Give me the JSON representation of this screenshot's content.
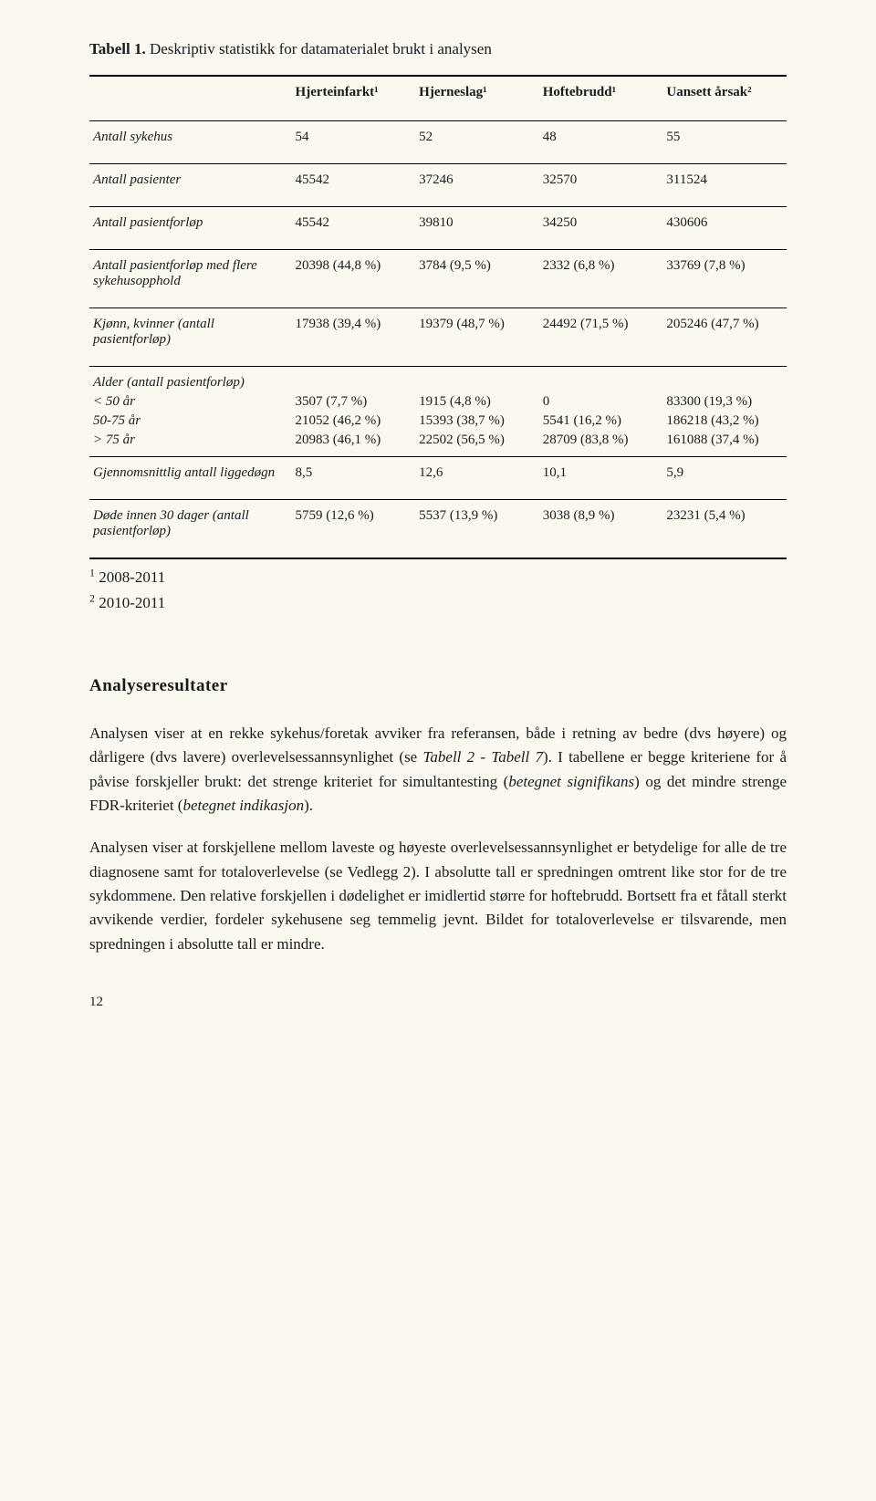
{
  "caption_bold": "Tabell 1.",
  "caption_rest": " Deskriptiv statistikk for datamaterialet brukt i analysen",
  "columns": [
    "Hjerteinfarkt¹",
    "Hjerneslag¹",
    "Hoftebrudd¹",
    "Uansett årsak²"
  ],
  "rows": {
    "antall_sykehus": {
      "label": "Antall sykehus",
      "v": [
        "54",
        "52",
        "48",
        "55"
      ]
    },
    "antall_pasienter": {
      "label": "Antall pasienter",
      "v": [
        "45542",
        "37246",
        "32570",
        "311524"
      ]
    },
    "antall_pasientforlop": {
      "label": "Antall pasientforløp",
      "v": [
        "45542",
        "39810",
        "34250",
        "430606"
      ]
    },
    "antall_pf_flere": {
      "label": "Antall pasientforløp med flere sykehusopphold",
      "v": [
        "20398 (44,8 %)",
        "3784 (9,5 %)",
        "2332 (6,8 %)",
        "33769 (7,8 %)"
      ]
    },
    "kjonn_kvinner": {
      "label": "Kjønn, kvinner (antall pasientforløp)",
      "v": [
        "17938 (39,4 %)",
        "19379 (48,7 %)",
        "24492 (71,5 %)",
        "205246 (47,7 %)"
      ]
    },
    "alder_head": "Alder (antall pasientforløp)",
    "alder_u50": {
      "label": "< 50 år",
      "v": [
        "3507 (7,7 %)",
        "1915 (4,8 %)",
        "0",
        "83300 (19,3 %)"
      ]
    },
    "alder_50_75": {
      "label": "50-75 år",
      "v": [
        "21052 (46,2 %)",
        "15393 (38,7 %)",
        "5541 (16,2 %)",
        "186218 (43,2 %)"
      ]
    },
    "alder_o75": {
      "label": "> 75 år",
      "v": [
        "20983 (46,1 %)",
        "22502 (56,5 %)",
        "28709 (83,8 %)",
        "161088 (37,4 %)"
      ]
    },
    "liggedogn": {
      "label": "Gjennomsnittlig antall liggedøgn",
      "v": [
        "8,5",
        "12,6",
        "10,1",
        "5,9"
      ]
    },
    "dode30": {
      "label": "Døde innen 30 dager (antall pasientforløp)",
      "v": [
        "5759 (12,6 %)",
        "5537 (13,9 %)",
        "3038 (8,9 %)",
        "23231 (5,4 %)"
      ]
    }
  },
  "footnotes": {
    "f1": "2008-2011",
    "f2": "2010-2011"
  },
  "section_heading": "Analyseresultater",
  "para1_a": "Analysen viser at en rekke sykehus/foretak avviker fra referansen, både i retning av bedre (dvs høyere) og dårligere (dvs lavere) overlevelsessannsynlighet (se ",
  "para1_em1": "Tabell 2",
  "para1_b": " - ",
  "para1_em2": "Tabell 7",
  "para1_c": "). I tabellene er begge kriteriene for å påvise forskjeller brukt: det strenge kriteriet for simultantesting (",
  "para1_em3": "betegnet signifikans",
  "para1_d": ") og det mindre strenge FDR-kriteriet (",
  "para1_em4": "betegnet indikasjon",
  "para1_e": ").",
  "para2": "Analysen viser at forskjellene mellom laveste og høyeste overlevelsessannsynlighet er betydelige for alle de tre diagnosene samt for totaloverlevelse (se Vedlegg 2). I absolutte tall er spredningen omtrent like stor for de tre sykdommene. Den relative forskjellen i dødelighet er imidlertid større for hoftebrudd. Bortsett fra et fåtall sterkt avvikende verdier, fordeler sykehusene seg temmelig jevnt. Bildet for totaloverlevelse er tilsvarende, men spredningen i absolutte tall er mindre.",
  "page_number": "12"
}
